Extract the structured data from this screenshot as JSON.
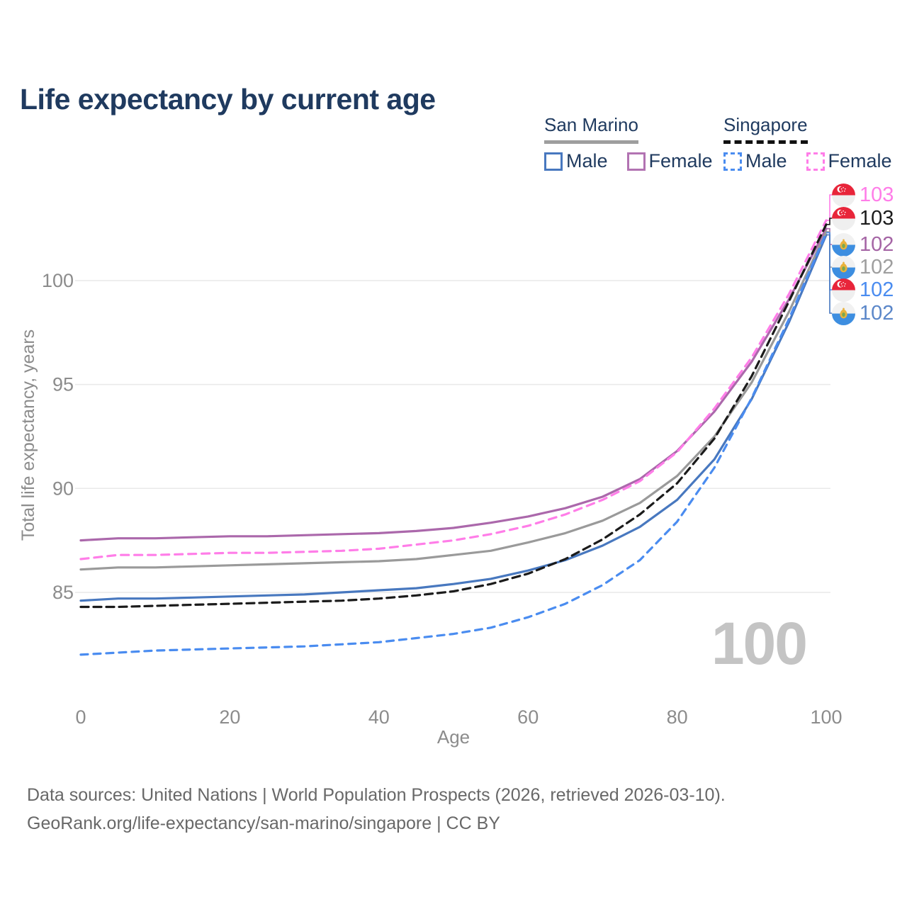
{
  "title": "Life expectancy by current age",
  "legend": {
    "san_marino": {
      "title": "San Marino",
      "male": "Male",
      "female": "Female"
    },
    "singapore": {
      "title": "Singapore",
      "male": "Male",
      "female": "Female"
    }
  },
  "watermark": "100",
  "footer": {
    "line1": "Data sources: United Nations | World Population Prospects (2026, retrieved 2026-03-10).",
    "line2": "GeoRank.org/life-expectancy/san-marino/singapore | CC BY"
  },
  "chart_data": {
    "type": "line",
    "title": "Life expectancy by current age",
    "xlabel": "Age",
    "ylabel": "Total life expectancy, years",
    "x_ticks": [
      0,
      20,
      40,
      60,
      80,
      100
    ],
    "y_ticks": [
      85,
      90,
      95,
      100
    ],
    "xlim": [
      0,
      100
    ],
    "ylim": [
      81.5,
      104
    ],
    "grid": "horizontal",
    "legend_position": "top-right",
    "x": [
      0,
      5,
      10,
      15,
      20,
      25,
      30,
      35,
      40,
      45,
      50,
      55,
      60,
      65,
      70,
      75,
      80,
      85,
      90,
      95,
      100
    ],
    "series": [
      {
        "name": "San Marino Male",
        "country": "San Marino",
        "sex": "Male",
        "style": "solid",
        "color": "#4878bf",
        "values": [
          84.6,
          84.7,
          84.7,
          84.75,
          84.8,
          84.85,
          84.9,
          85.0,
          85.1,
          85.2,
          85.4,
          85.65,
          86.05,
          86.55,
          87.25,
          88.15,
          89.45,
          91.4,
          94.3,
          98.0,
          102.2
        ]
      },
      {
        "name": "San Marino Female",
        "country": "San Marino",
        "sex": "Female",
        "style": "solid",
        "color": "#ab68ab",
        "values": [
          87.5,
          87.6,
          87.6,
          87.65,
          87.7,
          87.7,
          87.75,
          87.8,
          87.85,
          87.95,
          88.1,
          88.35,
          88.65,
          89.05,
          89.6,
          90.45,
          91.8,
          93.7,
          96.1,
          99.1,
          102.5
        ]
      },
      {
        "name": "San Marino",
        "country": "San Marino",
        "sex": "Both",
        "style": "solid",
        "color": "#9a9a9a",
        "values": [
          86.1,
          86.2,
          86.2,
          86.25,
          86.3,
          86.35,
          86.4,
          86.45,
          86.5,
          86.6,
          86.8,
          87.0,
          87.4,
          87.85,
          88.45,
          89.3,
          90.6,
          92.5,
          95.1,
          98.5,
          102.35
        ]
      },
      {
        "name": "Singapore Male",
        "country": "Singapore",
        "sex": "Male",
        "style": "dashed",
        "color": "#4a8cf0",
        "values": [
          82.0,
          82.1,
          82.2,
          82.25,
          82.3,
          82.35,
          82.4,
          82.5,
          82.6,
          82.8,
          83.0,
          83.3,
          83.8,
          84.45,
          85.35,
          86.55,
          88.4,
          91.0,
          94.35,
          98.15,
          102.3
        ]
      },
      {
        "name": "Singapore Female",
        "country": "Singapore",
        "sex": "Female",
        "style": "dashed",
        "color": "#ff7de8",
        "values": [
          86.6,
          86.8,
          86.8,
          86.85,
          86.9,
          86.9,
          86.95,
          87.0,
          87.1,
          87.3,
          87.5,
          87.8,
          88.2,
          88.75,
          89.45,
          90.35,
          91.75,
          93.85,
          96.3,
          99.35,
          102.9
        ]
      },
      {
        "name": "Singapore",
        "country": "Singapore",
        "sex": "Both",
        "style": "dashed",
        "color": "#1b1b1b",
        "values": [
          84.3,
          84.3,
          84.35,
          84.4,
          84.45,
          84.5,
          84.55,
          84.6,
          84.7,
          84.85,
          85.05,
          85.4,
          85.9,
          86.6,
          87.55,
          88.75,
          90.25,
          92.4,
          95.4,
          99.0,
          102.7
        ]
      }
    ],
    "end_labels": [
      {
        "value": "103",
        "flag": "singapore",
        "series": "Singapore Female",
        "color": "#ff7de8"
      },
      {
        "value": "103",
        "flag": "singapore",
        "series": "Singapore",
        "color": "#1b1b1b"
      },
      {
        "value": "102",
        "flag": "san-marino",
        "series": "San Marino Female",
        "color": "#a565a5"
      },
      {
        "value": "102",
        "flag": "san-marino",
        "series": "San Marino",
        "color": "#9e9e9e"
      },
      {
        "value": "102",
        "flag": "singapore",
        "series": "Singapore Male",
        "color": "#4a8cf0"
      },
      {
        "value": "102",
        "flag": "san-marino",
        "series": "San Marino Male",
        "color": "#5b87c9"
      }
    ]
  }
}
